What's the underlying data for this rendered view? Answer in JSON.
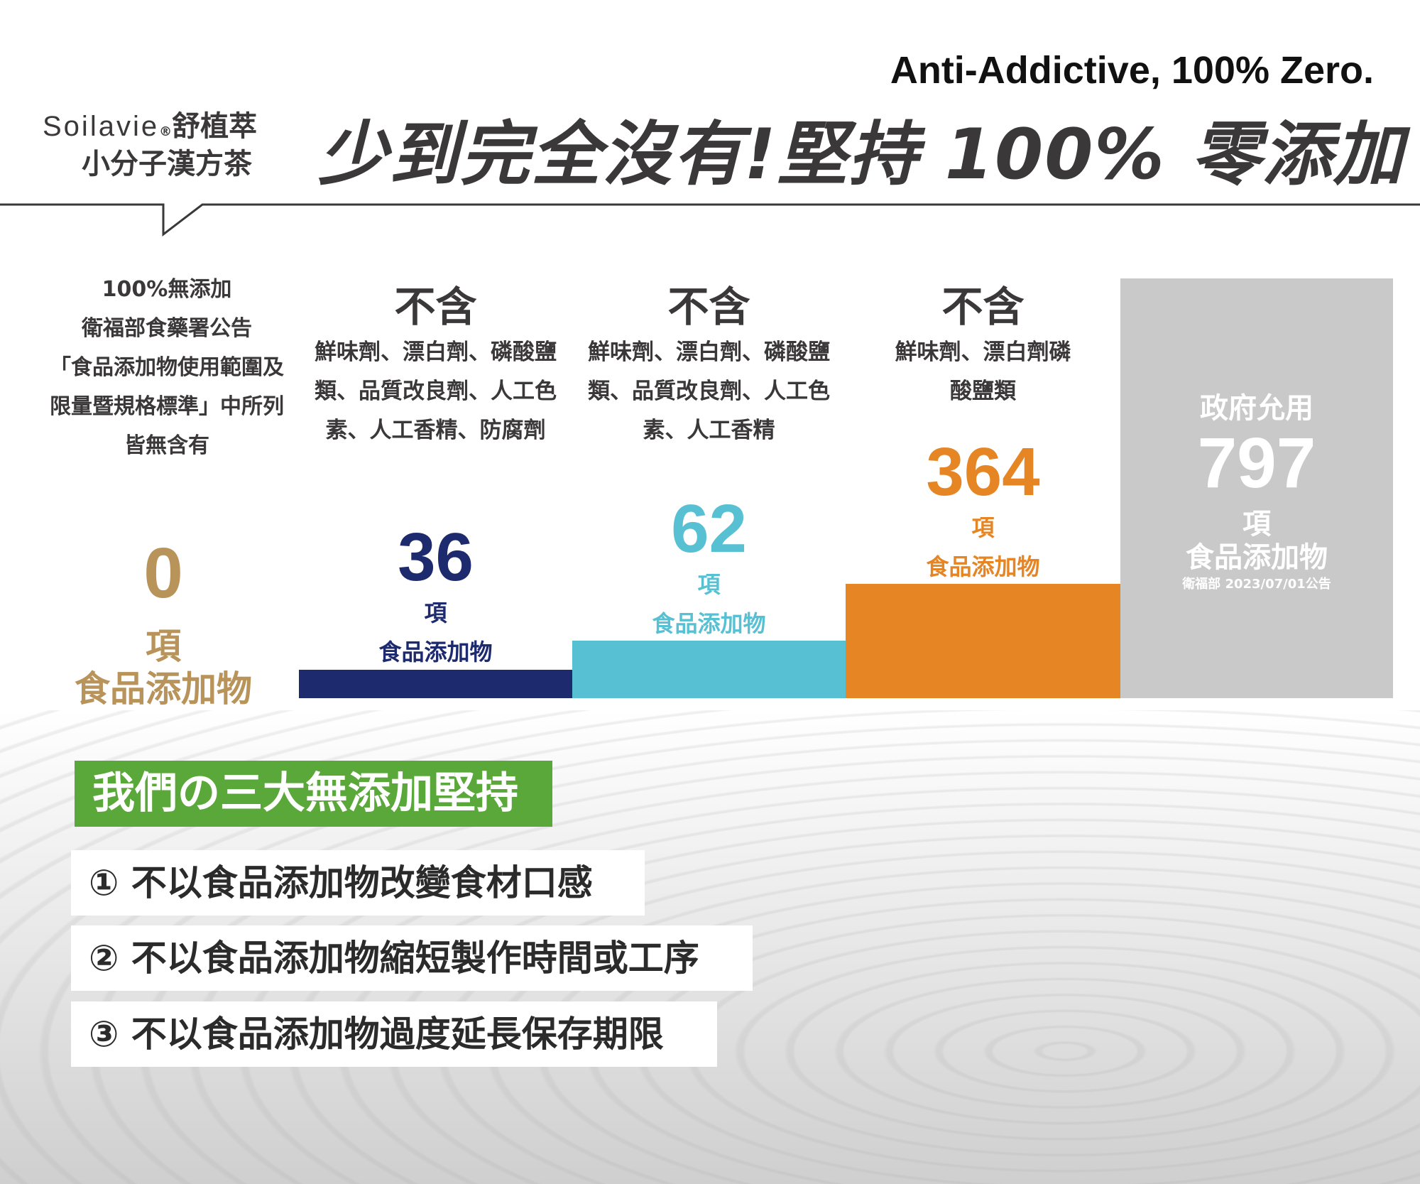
{
  "header": {
    "tagline_en": "Anti-Addictive, 100% Zero.",
    "title": "少到完全沒有!堅持 100% 零添加",
    "logo": {
      "brand": "Soilavie",
      "registered": "®",
      "name_zh": "舒植萃",
      "subtitle": "小分子漢方茶"
    }
  },
  "colors": {
    "gold": "#b8935a",
    "navy": "#1e2a6e",
    "cyan": "#57c1d3",
    "orange": "#e68524",
    "gray": "#c8c9c8",
    "green": "#5aa83a"
  },
  "chart_data": {
    "type": "bar",
    "categories": [
      "Soilavie",
      "36項",
      "62項",
      "364項",
      "政府允用"
    ],
    "values": [
      0,
      36,
      62,
      364,
      797
    ],
    "unit": "項",
    "unit_label": "食品添加物"
  },
  "columns": [
    {
      "desc": [
        "100%無添加",
        "衛福部食藥署公告",
        "「食品添加物使用範圍及",
        "限量暨規格標準」中所列",
        "皆無含有"
      ],
      "number": "0",
      "unit": "項",
      "label": "食品添加物"
    },
    {
      "heading": "不含",
      "desc": [
        "鮮味劑、漂白劑、磷酸鹽",
        "類、品質改良劑、人工色",
        "素、人工香精、防腐劑"
      ],
      "number": "36",
      "unit": "項",
      "label": "食品添加物"
    },
    {
      "heading": "不含",
      "desc": [
        "鮮味劑、漂白劑、磷酸鹽",
        "類、品質改良劑、人工色",
        "素、人工香精"
      ],
      "number": "62",
      "unit": "項",
      "label": "食品添加物"
    },
    {
      "heading": "不含",
      "desc": [
        "鮮味劑、漂白劑磷",
        "酸鹽類"
      ],
      "number": "364",
      "unit": "項",
      "label": "食品添加物"
    },
    {
      "heading": "政府允用",
      "number": "797",
      "unit": "項",
      "label": "食品添加物",
      "note": "衛福部 2023/07/01公告"
    }
  ],
  "commitment": {
    "title": "我們の三大無添加堅持",
    "items": [
      "① 不以食品添加物改變食材口感",
      "② 不以食品添加物縮短製作時間或工序",
      "③ 不以食品添加物過度延長保存期限"
    ]
  }
}
